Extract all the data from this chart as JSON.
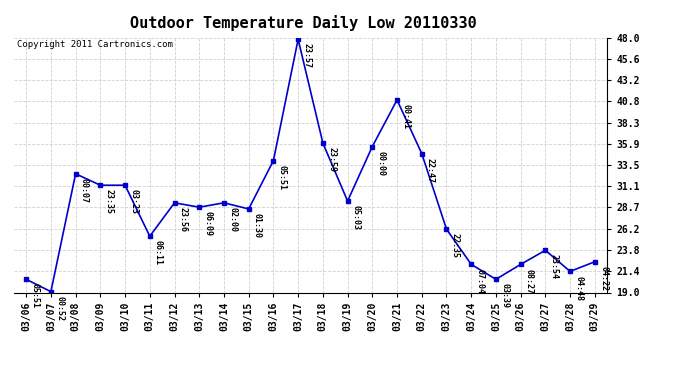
{
  "title": "Outdoor Temperature Daily Low 20110330",
  "copyright": "Copyright 2011 Cartronics.com",
  "x_labels": [
    "03/06",
    "03/07",
    "03/08",
    "03/09",
    "03/10",
    "03/11",
    "03/12",
    "03/13",
    "03/14",
    "03/15",
    "03/16",
    "03/17",
    "03/18",
    "03/19",
    "03/20",
    "03/21",
    "03/22",
    "03/23",
    "03/24",
    "03/25",
    "03/26",
    "03/27",
    "03/28",
    "03/29"
  ],
  "y_values": [
    20.5,
    19.1,
    32.5,
    31.2,
    31.2,
    25.4,
    29.2,
    28.7,
    29.2,
    28.5,
    34.0,
    47.8,
    36.0,
    29.4,
    35.6,
    40.9,
    34.8,
    26.2,
    22.2,
    20.5,
    22.2,
    23.8,
    21.4,
    22.5
  ],
  "time_labels": [
    "05:51",
    "00:52",
    "00:07",
    "23:35",
    "03:23",
    "06:11",
    "23:56",
    "06:09",
    "02:00",
    "01:30",
    "05:51",
    "23:57",
    "23:59",
    "05:03",
    "00:00",
    "00:41",
    "22:47",
    "22:35",
    "07:04",
    "03:39",
    "08:27",
    "23:54",
    "04:48",
    "04:22"
  ],
  "line_color": "#0000cc",
  "marker_color": "#0000cc",
  "background_color": "#ffffff",
  "grid_color": "#cccccc",
  "ylim_min": 19.0,
  "ylim_max": 48.0,
  "yticks": [
    19.0,
    21.4,
    23.8,
    26.2,
    28.7,
    31.1,
    33.5,
    35.9,
    38.3,
    40.8,
    43.2,
    45.6,
    48.0
  ],
  "title_fontsize": 11,
  "copyright_fontsize": 6.5,
  "label_fontsize": 6,
  "tick_fontsize": 7
}
